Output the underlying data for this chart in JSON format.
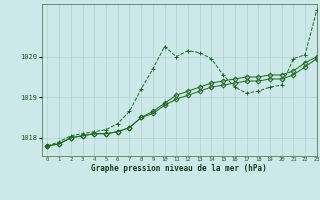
{
  "xlabel": "Graphe pression niveau de la mer (hPa)",
  "background_color": "#cde8e8",
  "grid_color": "#aacccc",
  "line_color": "#1a6b1a",
  "ylim": [
    1017.55,
    1021.3
  ],
  "xlim": [
    -0.5,
    23
  ],
  "yticks": [
    1018,
    1019,
    1020
  ],
  "xticks": [
    0,
    1,
    2,
    3,
    4,
    5,
    6,
    7,
    8,
    9,
    10,
    11,
    12,
    13,
    14,
    15,
    16,
    17,
    18,
    19,
    20,
    21,
    22,
    23
  ],
  "series": [
    {
      "x": [
        0,
        1,
        2,
        3,
        4,
        5,
        6,
        7,
        8,
        9,
        10,
        11,
        12,
        13,
        14,
        15,
        16,
        17,
        18,
        19,
        20,
        21,
        22,
        23
      ],
      "y": [
        1017.8,
        1017.9,
        1018.05,
        1018.1,
        1018.15,
        1018.2,
        1018.35,
        1018.65,
        1019.2,
        1019.7,
        1020.25,
        1020.0,
        1020.15,
        1020.1,
        1019.95,
        1019.55,
        1019.25,
        1019.1,
        1019.15,
        1019.25,
        1019.3,
        1019.95,
        1020.05,
        1021.15
      ],
      "style": "dashed",
      "marker": "+"
    },
    {
      "x": [
        0,
        1,
        2,
        3,
        4,
        5,
        6,
        7,
        8,
        9,
        10,
        11,
        12,
        13,
        14,
        15,
        16,
        17,
        18,
        19,
        20,
        21,
        22,
        23
      ],
      "y": [
        1017.8,
        1017.85,
        1018.0,
        1018.05,
        1018.1,
        1018.1,
        1018.15,
        1018.25,
        1018.5,
        1018.65,
        1018.85,
        1019.05,
        1019.15,
        1019.25,
        1019.35,
        1019.4,
        1019.45,
        1019.5,
        1019.5,
        1019.55,
        1019.55,
        1019.65,
        1019.85,
        1020.0
      ],
      "style": "solid",
      "marker": "D"
    },
    {
      "x": [
        0,
        1,
        2,
        3,
        4,
        5,
        6,
        7,
        8,
        9,
        10,
        11,
        12,
        13,
        14,
        15,
        16,
        17,
        18,
        19,
        20,
        21,
        22,
        23
      ],
      "y": [
        1017.8,
        1017.85,
        1018.0,
        1018.05,
        1018.1,
        1018.1,
        1018.15,
        1018.25,
        1018.5,
        1018.6,
        1018.8,
        1018.95,
        1019.05,
        1019.15,
        1019.25,
        1019.3,
        1019.35,
        1019.4,
        1019.4,
        1019.45,
        1019.45,
        1019.55,
        1019.75,
        1019.95
      ],
      "style": "solid",
      "marker": "D"
    }
  ]
}
